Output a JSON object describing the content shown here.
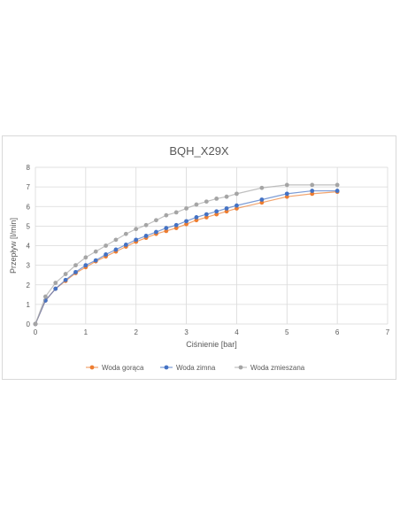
{
  "chart_data": {
    "type": "line",
    "title": "BQH_X29X",
    "xlabel": "Ciśnienie [bar]",
    "ylabel": "Przepływ [l/min]",
    "xlim": [
      0,
      7
    ],
    "ylim": [
      0,
      8
    ],
    "x_ticks": [
      "0",
      "1",
      "2",
      "3",
      "4",
      "5",
      "6",
      "7"
    ],
    "y_ticks": [
      "0",
      "1",
      "2",
      "3",
      "4",
      "5",
      "6",
      "7",
      "8"
    ],
    "grid": true,
    "legend_position": "bottom",
    "series": [
      {
        "name": "Woda gorąca",
        "color": "#ed7d31",
        "x": [
          0,
          0.2,
          0.4,
          0.6,
          0.8,
          1.0,
          1.2,
          1.4,
          1.6,
          1.8,
          2.0,
          2.2,
          2.4,
          2.6,
          2.8,
          3.0,
          3.2,
          3.4,
          3.6,
          3.8,
          4.0,
          4.5,
          5.0,
          5.5,
          6.0
        ],
        "values": [
          0,
          1.2,
          1.8,
          2.2,
          2.6,
          2.9,
          3.2,
          3.45,
          3.7,
          3.95,
          4.2,
          4.4,
          4.6,
          4.75,
          4.9,
          5.1,
          5.3,
          5.45,
          5.6,
          5.75,
          5.9,
          6.2,
          6.5,
          6.65,
          6.75
        ]
      },
      {
        "name": "Woda zimna",
        "color": "#4472c4",
        "x": [
          0,
          0.2,
          0.4,
          0.6,
          0.8,
          1.0,
          1.2,
          1.4,
          1.6,
          1.8,
          2.0,
          2.2,
          2.4,
          2.6,
          2.8,
          3.0,
          3.2,
          3.4,
          3.6,
          3.8,
          4.0,
          4.5,
          5.0,
          5.5,
          6.0
        ],
        "values": [
          0,
          1.2,
          1.8,
          2.25,
          2.65,
          3.0,
          3.25,
          3.55,
          3.8,
          4.05,
          4.3,
          4.5,
          4.7,
          4.9,
          5.05,
          5.25,
          5.45,
          5.6,
          5.75,
          5.9,
          6.05,
          6.35,
          6.65,
          6.8,
          6.8
        ]
      },
      {
        "name": "Woda zmieszana",
        "color": "#a5a5a5",
        "x": [
          0,
          0.2,
          0.4,
          0.6,
          0.8,
          1.0,
          1.2,
          1.4,
          1.6,
          1.8,
          2.0,
          2.2,
          2.4,
          2.6,
          2.8,
          3.0,
          3.2,
          3.4,
          3.6,
          3.8,
          4.0,
          4.5,
          5.0,
          5.5,
          6.0
        ],
        "values": [
          0,
          1.4,
          2.1,
          2.55,
          3.0,
          3.4,
          3.7,
          4.0,
          4.3,
          4.6,
          4.85,
          5.05,
          5.3,
          5.55,
          5.7,
          5.9,
          6.1,
          6.25,
          6.4,
          6.5,
          6.65,
          6.95,
          7.1,
          7.1,
          7.1
        ]
      }
    ]
  },
  "colors": {
    "grid": "#d9d9d9",
    "text": "#595959"
  }
}
